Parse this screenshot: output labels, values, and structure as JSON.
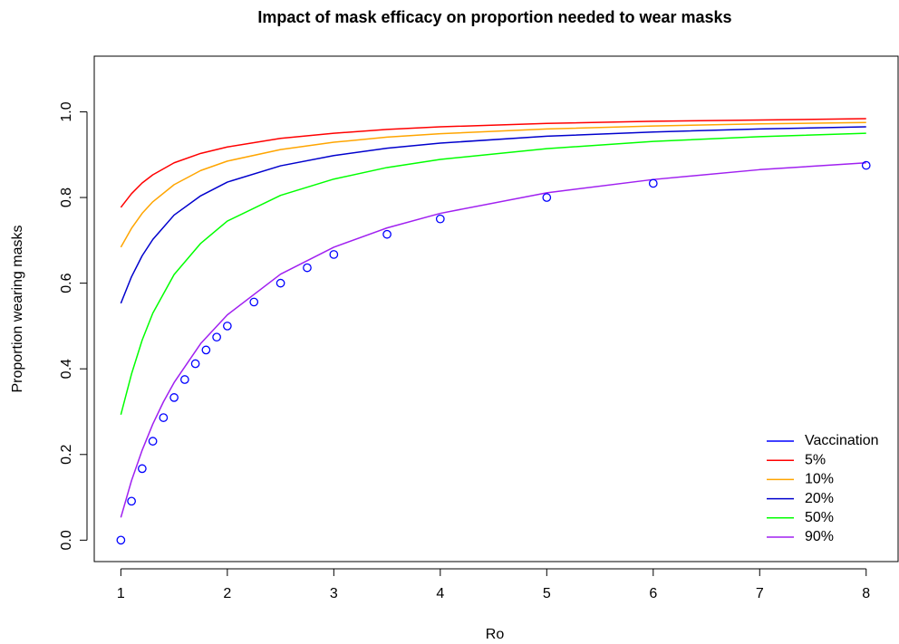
{
  "chart_data": {
    "type": "line",
    "title": "Impact of mask efficacy on proportion needed to wear masks",
    "xlabel": "Ro",
    "ylabel": "Proportion wearing masks",
    "xlim": [
      0.75,
      8.3
    ],
    "ylim": [
      -0.05,
      1.13
    ],
    "xticks": [
      1,
      2,
      3,
      4,
      5,
      6,
      7,
      8
    ],
    "yticks": [
      0.0,
      0.2,
      0.4,
      0.6,
      0.8,
      1.0
    ],
    "ytick_labels": [
      "0.0",
      "0.2",
      "0.4",
      "0.6",
      "0.8",
      "1.0"
    ],
    "grid": false,
    "legend_position": "bottom-right",
    "legend": [
      {
        "label": "Vaccination",
        "color": "#0000ff",
        "symbol": "line"
      },
      {
        "label": "5%",
        "color": "#ff0000",
        "symbol": "line"
      },
      {
        "label": "10%",
        "color": "#ffa500",
        "symbol": "line"
      },
      {
        "label": "20%",
        "color": "#0000cd",
        "symbol": "line"
      },
      {
        "label": "50%",
        "color": "#00ff00",
        "symbol": "line"
      },
      {
        "label": "90%",
        "color": "#a020f0",
        "symbol": "line"
      }
    ],
    "series": [
      {
        "name": "5%",
        "color": "#ff0000",
        "type": "line",
        "x": [
          1.0,
          1.1,
          1.2,
          1.3,
          1.5,
          1.75,
          2.0,
          2.5,
          3.0,
          3.5,
          4.0,
          5.0,
          6.0,
          7.0,
          8.0
        ],
        "y": [
          0.777,
          0.809,
          0.834,
          0.853,
          0.881,
          0.903,
          0.918,
          0.938,
          0.95,
          0.959,
          0.965,
          0.973,
          0.978,
          0.981,
          0.984
        ]
      },
      {
        "name": "10%",
        "color": "#ffa500",
        "type": "line",
        "x": [
          1.0,
          1.1,
          1.2,
          1.3,
          1.5,
          1.75,
          2.0,
          2.5,
          3.0,
          3.5,
          4.0,
          5.0,
          6.0,
          7.0,
          8.0
        ],
        "y": [
          0.684,
          0.728,
          0.763,
          0.79,
          0.83,
          0.863,
          0.885,
          0.912,
          0.929,
          0.941,
          0.949,
          0.96,
          0.967,
          0.972,
          0.975
        ]
      },
      {
        "name": "20%",
        "color": "#0000cd",
        "type": "line",
        "x": [
          1.0,
          1.1,
          1.2,
          1.3,
          1.5,
          1.75,
          2.0,
          2.5,
          3.0,
          3.5,
          4.0,
          5.0,
          6.0,
          7.0,
          8.0
        ],
        "y": [
          0.553,
          0.615,
          0.664,
          0.702,
          0.759,
          0.804,
          0.836,
          0.874,
          0.898,
          0.915,
          0.927,
          0.943,
          0.953,
          0.96,
          0.965
        ]
      },
      {
        "name": "50%",
        "color": "#00ff00",
        "type": "line",
        "x": [
          1.0,
          1.1,
          1.2,
          1.3,
          1.5,
          1.75,
          2.0,
          2.5,
          3.0,
          3.5,
          4.0,
          5.0,
          6.0,
          7.0,
          8.0
        ],
        "y": [
          0.293,
          0.388,
          0.467,
          0.53,
          0.62,
          0.693,
          0.745,
          0.805,
          0.843,
          0.87,
          0.889,
          0.914,
          0.931,
          0.942,
          0.95
        ]
      },
      {
        "name": "90%",
        "color": "#a020f0",
        "type": "line",
        "x": [
          1.0,
          1.1,
          1.2,
          1.3,
          1.4,
          1.5,
          1.75,
          2.0,
          2.5,
          3.0,
          3.5,
          4.0,
          5.0,
          6.0,
          7.0,
          8.0
        ],
        "y": [
          0.053,
          0.139,
          0.21,
          0.271,
          0.323,
          0.368,
          0.459,
          0.526,
          0.621,
          0.684,
          0.729,
          0.763,
          0.811,
          0.842,
          0.865,
          0.881
        ]
      },
      {
        "name": "Vaccination",
        "color": "#0000ff",
        "type": "scatter",
        "marker": "open-circle",
        "x": [
          1.0,
          1.1,
          1.2,
          1.3,
          1.4,
          1.5,
          1.6,
          1.7,
          1.8,
          1.9,
          2.0,
          2.25,
          2.5,
          2.75,
          3.0,
          3.5,
          4.0,
          5.0,
          6.0,
          8.0
        ],
        "y": [
          0.0,
          0.091,
          0.167,
          0.231,
          0.286,
          0.333,
          0.375,
          0.412,
          0.444,
          0.474,
          0.5,
          0.556,
          0.6,
          0.636,
          0.667,
          0.714,
          0.75,
          0.8,
          0.833,
          0.875
        ]
      }
    ]
  }
}
